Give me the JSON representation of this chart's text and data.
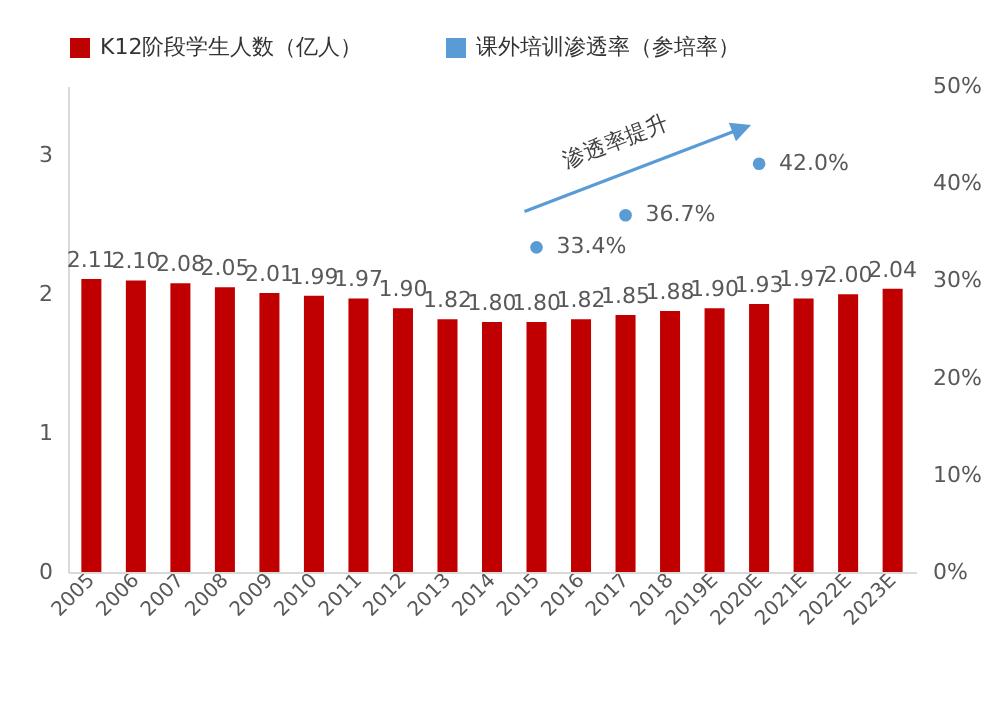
{
  "chart_data": {
    "type": "bar",
    "legend": "top",
    "categories": [
      "2005",
      "2006",
      "2007",
      "2008",
      "2009",
      "2010",
      "2011",
      "2012",
      "2013",
      "2014",
      "2015",
      "2016",
      "2017",
      "2018",
      "2019E",
      "2020E",
      "2021E",
      "2022E",
      "2023E"
    ],
    "series": [
      {
        "name": "K12阶段学生人数（亿人）",
        "color": "#c00000",
        "values": [
          2.11,
          2.1,
          2.08,
          2.05,
          2.01,
          1.99,
          1.97,
          1.9,
          1.82,
          1.8,
          1.8,
          1.82,
          1.85,
          1.88,
          1.9,
          1.93,
          1.97,
          2.0,
          2.04
        ],
        "value_labels": [
          "2.11",
          "2.10",
          "2.08",
          "2.05",
          "2.01",
          "1.99",
          "1.97",
          "1.90",
          "1.82",
          "1.80",
          "1.80",
          "1.82",
          "1.85",
          "1.88",
          "1.90",
          "1.93",
          "1.97",
          "2.00",
          "2.04"
        ]
      },
      {
        "name": "课外培训渗透率（参培率）",
        "type": "scatter",
        "axis": "y2",
        "color": "#5b9bd5",
        "values": [
          null,
          null,
          null,
          null,
          null,
          null,
          null,
          null,
          null,
          null,
          33.4,
          null,
          36.7,
          null,
          null,
          42.0,
          null,
          null,
          null
        ],
        "value_labels": [
          null,
          null,
          null,
          null,
          null,
          null,
          null,
          null,
          null,
          null,
          "33.4%",
          null,
          "36.7%",
          null,
          null,
          "42.0%",
          null,
          null,
          null
        ]
      }
    ],
    "ylim": [
      0,
      3.5
    ],
    "yticks": [
      0,
      1,
      2,
      3
    ],
    "y2lim": [
      0,
      50
    ],
    "y2ticks": [
      {
        "value": 0,
        "label": "0%"
      },
      {
        "value": 10,
        "label": "10%"
      },
      {
        "value": 20,
        "label": "20%"
      },
      {
        "value": 30,
        "label": "30%"
      },
      {
        "value": 40,
        "label": "40%"
      },
      {
        "value": 50,
        "label": "50%"
      }
    ],
    "annotations": [
      "渗透率提升"
    ]
  }
}
